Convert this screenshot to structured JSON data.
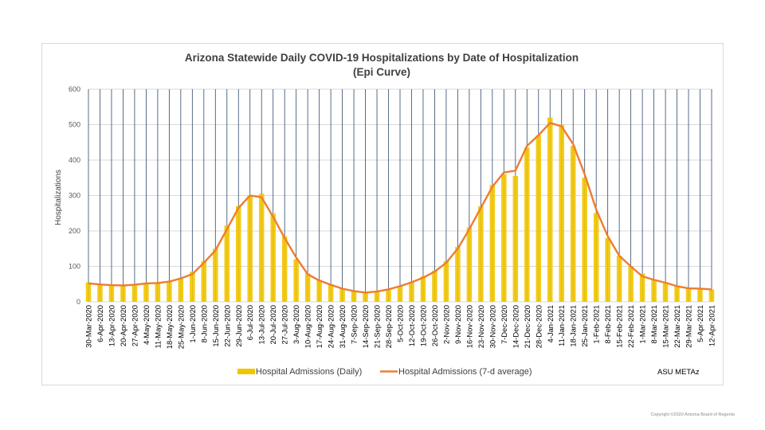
{
  "chart_data": {
    "type": "bar",
    "title": "Arizona Statewide Daily COVID-19 Hospitalizations by Date of Hospitalization",
    "subtitle": "(Epi Curve)",
    "xlabel": "",
    "ylabel": "Hospitalizations",
    "ylim": [
      0,
      600
    ],
    "yticks": [
      "0",
      "100",
      "200",
      "300",
      "400",
      "500",
      "600"
    ],
    "grid": true,
    "legend_position": "bottom",
    "categories": [
      "30-Mar-2020",
      "6-Apr-2020",
      "13-Apr-2020",
      "20-Apr-2020",
      "27-Apr-2020",
      "4-May-2020",
      "11-May-2020",
      "18-May-2020",
      "25-May-2020",
      "1-Jun-2020",
      "8-Jun-2020",
      "15-Jun-2020",
      "22-Jun-2020",
      "29-Jun-2020",
      "6-Jul-2020",
      "13-Jul-2020",
      "20-Jul-2020",
      "27-Jul-2020",
      "3-Aug-2020",
      "10-Aug-2020",
      "17-Aug-2020",
      "24-Aug-2020",
      "31-Aug-2020",
      "7-Sep-2020",
      "14-Sep-2020",
      "21-Sep-2020",
      "28-Sep-2020",
      "5-Oct-2020",
      "12-Oct-2020",
      "19-Oct-2020",
      "26-Oct-2020",
      "2-Nov-2020",
      "9-Nov-2020",
      "16-Nov-2020",
      "23-Nov-2020",
      "30-Nov-2020",
      "7-Dec-2020",
      "14-Dec-2020",
      "21-Dec-2020",
      "28-Dec-2020",
      "4-Jan-2021",
      "11-Jan-2021",
      "18-Jan-2021",
      "25-Jan-2021",
      "1-Feb-2021",
      "8-Feb-2021",
      "15-Feb-2021",
      "22-Feb-2021",
      "1-Mar-2021",
      "8-Mar-2021",
      "15-Mar-2021",
      "22-Mar-2021",
      "29-Mar-2021",
      "5-Apr-2021",
      "12-Apr-2021"
    ],
    "series": [
      {
        "name": "Hospital Admissions (Daily)",
        "type": "bar",
        "color": "#f2c500",
        "values": [
          55,
          48,
          46,
          45,
          50,
          54,
          53,
          58,
          68,
          85,
          115,
          150,
          215,
          270,
          300,
          305,
          250,
          185,
          120,
          80,
          62,
          50,
          38,
          30,
          26,
          30,
          37,
          45,
          57,
          72,
          88,
          115,
          155,
          210,
          270,
          330,
          360,
          355,
          435,
          470,
          520,
          500,
          440,
          350,
          250,
          180,
          130,
          100,
          80,
          62,
          55,
          45,
          40,
          38,
          35
        ]
      },
      {
        "name": "Hospital Admissions (7-d average)",
        "type": "line",
        "color": "#ed7d31",
        "values": [
          52,
          49,
          47,
          46,
          48,
          52,
          53,
          57,
          66,
          78,
          110,
          145,
          205,
          265,
          300,
          295,
          240,
          180,
          125,
          78,
          60,
          48,
          37,
          30,
          26,
          29,
          35,
          44,
          55,
          68,
          85,
          110,
          150,
          205,
          265,
          325,
          365,
          370,
          440,
          470,
          505,
          495,
          445,
          360,
          260,
          185,
          130,
          100,
          72,
          62,
          54,
          44,
          38,
          37,
          35
        ]
      }
    ],
    "annotation": "ASU METAz"
  },
  "footer": {
    "copyright": "Copyright ©2020 Arizona Board of Regents"
  },
  "colors": {
    "bars": "#f2c500",
    "line": "#ed7d31",
    "grid_vertical": "#2e4a6b",
    "grid_horizontal": "#d9d9d9"
  }
}
